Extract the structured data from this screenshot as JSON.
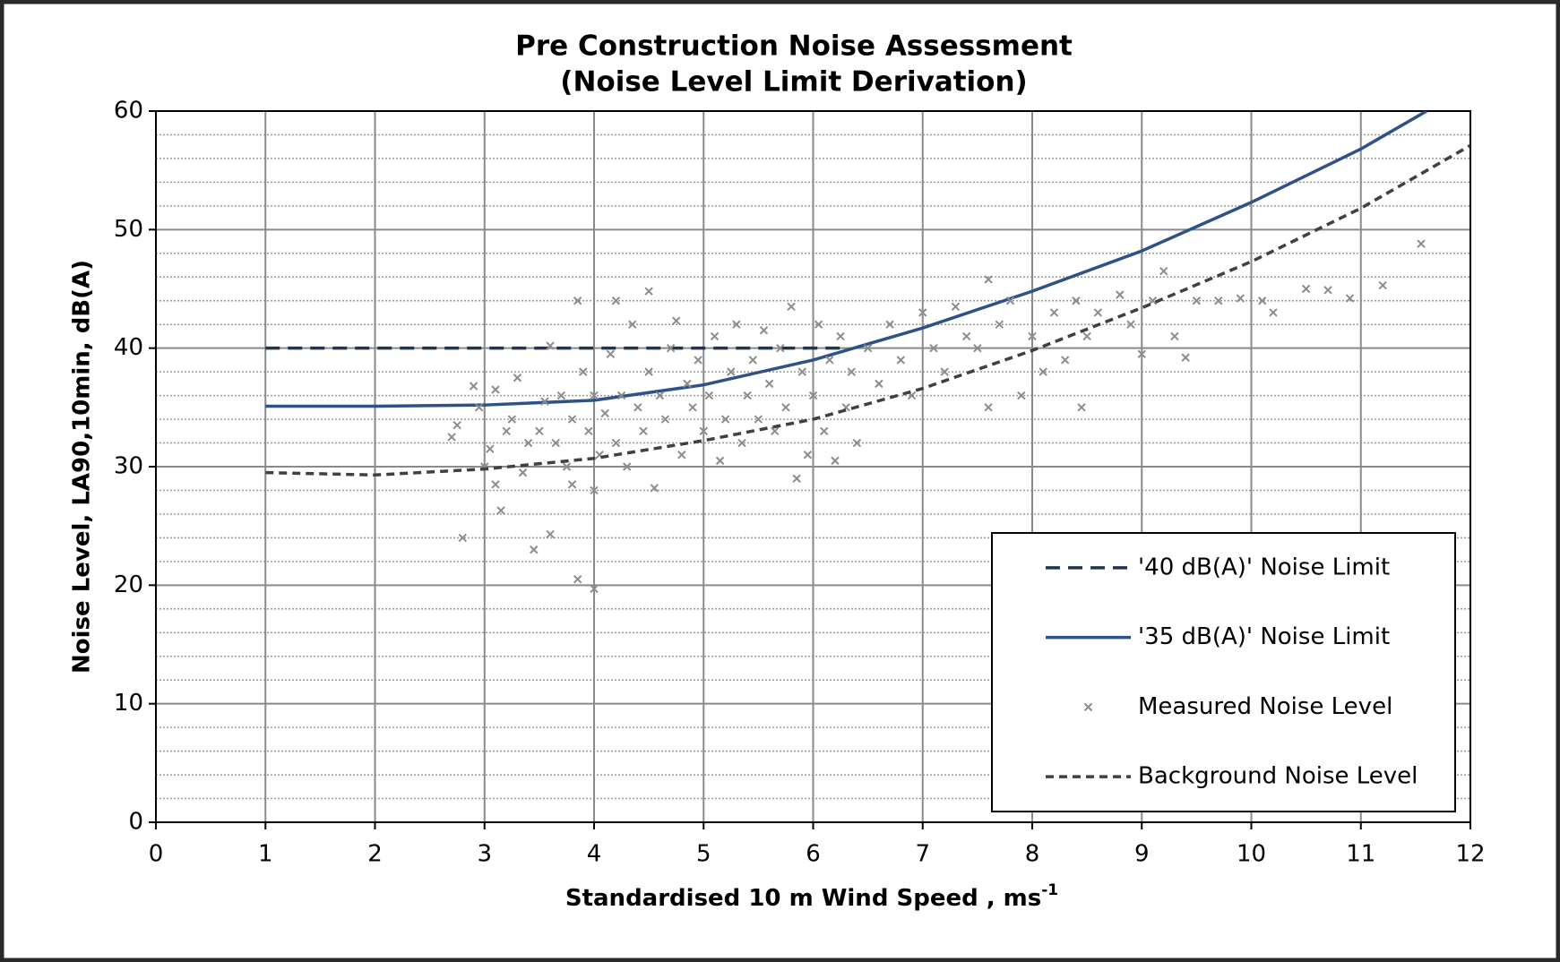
{
  "chart_data": {
    "type": "scatter",
    "title": [
      "Pre Construction Noise  Assessment",
      "(Noise Level Limit  Derivation)"
    ],
    "x_label": "Standardised 10 m Wind Speed , ms",
    "x_label_superscript": "-1",
    "y_label": "Noise Level, LA90,10min, dB(A)",
    "xlim": [
      0,
      12
    ],
    "xticks": [
      0,
      1,
      2,
      3,
      4,
      5,
      6,
      7,
      8,
      9,
      10,
      11,
      12
    ],
    "ylim": [
      0,
      60
    ],
    "yticks": [
      0,
      10,
      20,
      30,
      40,
      50,
      60
    ],
    "grid": true,
    "y_minor_grid": 2,
    "legend": "lower right",
    "series": [
      {
        "name": "'40 dB(A)' Noise Limit",
        "style": "long-dash",
        "color": "#1f3550",
        "x": [
          1,
          2,
          3,
          4,
          5,
          6,
          6.3
        ],
        "values": [
          40,
          40,
          40,
          40,
          40,
          40,
          40
        ]
      },
      {
        "name": "'35 dB(A)' Noise Limit",
        "style": "solid",
        "color": "#2e5288",
        "x": [
          1,
          2,
          3,
          4,
          5,
          6,
          7,
          8,
          9,
          10,
          11,
          11.6
        ],
        "values": [
          35.1,
          35.1,
          35.2,
          35.6,
          36.9,
          39,
          41.7,
          44.8,
          48.2,
          52.3,
          56.8,
          60
        ]
      },
      {
        "name": "Measured Noise Level",
        "style": "markers",
        "color": "#8c8c8c",
        "x": [
          2.7,
          2.75,
          2.8,
          2.9,
          2.95,
          3,
          3.05,
          3.1,
          3.1,
          3.15,
          3.2,
          3.25,
          3.3,
          3.35,
          3.4,
          3.45,
          3.5,
          3.55,
          3.6,
          3.6,
          3.65,
          3.7,
          3.75,
          3.8,
          3.8,
          3.85,
          3.85,
          3.9,
          3.95,
          4,
          4,
          4,
          4.05,
          4.1,
          4.15,
          4.2,
          4.2,
          4.25,
          4.3,
          4.35,
          4.4,
          4.45,
          4.5,
          4.5,
          4.55,
          4.6,
          4.65,
          4.7,
          4.75,
          4.8,
          4.85,
          4.9,
          4.95,
          5,
          5.05,
          5.1,
          5.15,
          5.2,
          5.25,
          5.3,
          5.35,
          5.4,
          5.45,
          5.5,
          5.55,
          5.6,
          5.65,
          5.7,
          5.75,
          5.8,
          5.85,
          5.9,
          5.95,
          6,
          6.05,
          6.1,
          6.15,
          6.2,
          6.25,
          6.3,
          6.35,
          6.4,
          6.5,
          6.6,
          6.7,
          6.8,
          6.9,
          7,
          7.1,
          7.2,
          7.3,
          7.4,
          7.5,
          7.6,
          7.6,
          7.7,
          7.8,
          7.9,
          8,
          8.1,
          8.2,
          8.3,
          8.4,
          8.45,
          8.5,
          8.6,
          8.8,
          8.9,
          9,
          9.1,
          9.2,
          9.3,
          9.4,
          9.5,
          9.7,
          9.9,
          10.1,
          10.2,
          10.5,
          10.7,
          10.9,
          11.2,
          11.55
        ],
        "values": [
          32.5,
          33.5,
          24,
          36.8,
          35,
          30,
          31.5,
          36.5,
          28.5,
          26.3,
          33,
          34,
          37.5,
          29.5,
          32,
          23,
          33,
          35.5,
          24.3,
          40.2,
          32,
          36,
          30,
          34,
          28.5,
          44,
          20.5,
          38,
          33,
          19.7,
          28,
          36,
          31,
          34.5,
          39.5,
          44,
          32,
          36,
          30,
          42,
          35,
          33,
          44.8,
          38,
          28.2,
          36,
          34,
          40,
          42.3,
          31,
          37,
          35,
          39,
          33,
          36,
          41,
          30.5,
          34,
          38,
          42,
          32,
          36,
          39,
          34,
          41.5,
          37,
          33,
          40,
          35,
          43.5,
          29,
          38,
          31,
          36,
          42,
          33,
          39,
          30.5,
          41,
          35,
          38,
          32,
          40,
          37,
          42,
          39,
          36,
          43,
          40,
          38,
          43.5,
          41,
          40,
          45.8,
          35,
          42,
          44,
          36,
          41,
          38,
          43,
          39,
          44,
          35,
          41,
          43,
          44.5,
          42,
          39.5,
          44,
          46.5,
          41,
          39.2,
          44,
          44,
          44.2,
          44,
          43,
          45,
          44.9,
          44.2,
          45.3,
          48.8
        ]
      },
      {
        "name": "Background Noise Level",
        "style": "dash",
        "color": "#404040",
        "x": [
          1,
          2,
          3,
          4,
          5,
          6,
          7,
          8,
          9,
          10,
          11,
          12
        ],
        "values": [
          29.5,
          29.3,
          29.8,
          30.7,
          32.2,
          34,
          36.6,
          39.8,
          43.4,
          47.3,
          51.8,
          57.1
        ]
      }
    ]
  }
}
